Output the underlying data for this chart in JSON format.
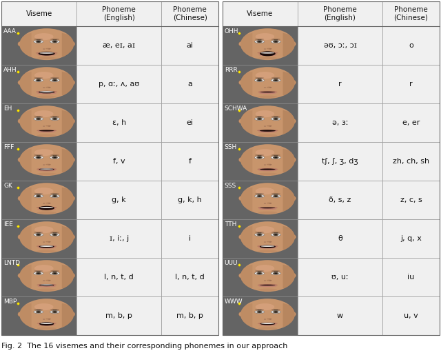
{
  "title": "Fig. 2  The 16 visemes and their corresponding phonemes in our approach",
  "rows": [
    [
      "AAA",
      "æ, eɪ, aɪ",
      "ai",
      "OHH",
      "əʊ, ɔː, ɔɪ",
      "o"
    ],
    [
      "AHH",
      "p, ɑː, ʌ, aʊ",
      "a",
      "RRR",
      "r",
      "r"
    ],
    [
      "EH",
      "ɛ, h",
      "ei",
      "SCHWA",
      "ə, ɜː",
      "e, er"
    ],
    [
      "FFF",
      "f, v",
      "f",
      "SSH",
      "tʃ, ʃ, ʒ, dʒ",
      "zh, ch, sh"
    ],
    [
      "GK",
      "g, k",
      "g, k, h",
      "SSS",
      "ð, s, z",
      "z, c, s"
    ],
    [
      "IEE",
      "ɪ, iː, j",
      "i",
      "TTH",
      "θ",
      "j, q, x"
    ],
    [
      "LNTD",
      "l, n, t, d",
      "l, n, t, d",
      "UUU",
      "ʊ, uː",
      "iu"
    ],
    [
      "MBP",
      "m, b, p",
      "m, b, p",
      "WWW",
      "w",
      "u, v"
    ]
  ],
  "mouth_open": [
    0.55,
    0.7,
    0.35,
    0.15,
    0.2,
    0.25,
    0.3,
    0.2,
    0.6,
    0.15,
    0.4,
    0.45,
    0.3,
    0.15,
    0.5,
    0.35
  ],
  "mouth_wide": [
    0.7,
    0.55,
    0.65,
    0.4,
    0.45,
    0.6,
    0.5,
    0.55,
    0.55,
    0.45,
    0.5,
    0.6,
    0.45,
    0.5,
    0.4,
    0.45
  ],
  "skin_color": "#c8956c",
  "skin_dark": "#b07a55",
  "skin_shadow": "#9a6a48",
  "bg_dark": "#646464",
  "bg_light": "#f0f0f0",
  "text_dark": "#111111",
  "text_light": "#ffffff",
  "figure_bg": "#ffffff",
  "header_font_size": 7.5,
  "cell_font_size": 8.0,
  "label_font_size": 6.5,
  "caption_font_size": 8.0
}
